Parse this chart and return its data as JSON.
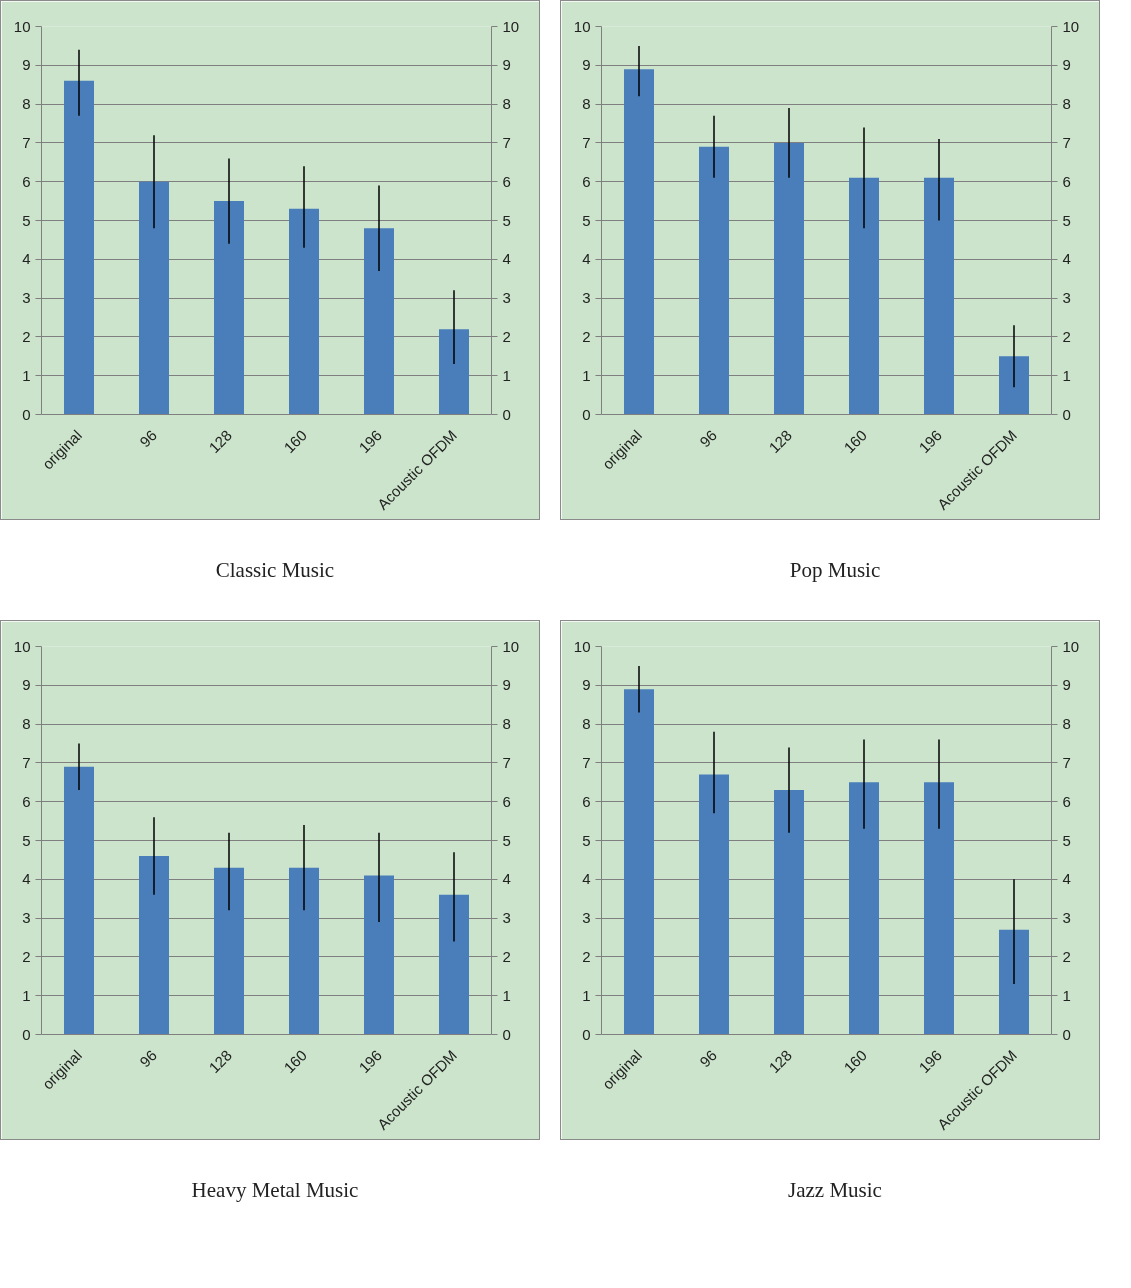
{
  "chart_data": [
    {
      "type": "bar",
      "title": "Classic Music",
      "categories": [
        "original",
        "96",
        "128",
        "160",
        "196",
        "Acoustic OFDM"
      ],
      "color": "#4a7ebb",
      "values": [
        8.6,
        6.0,
        5.5,
        5.3,
        4.8,
        2.2
      ],
      "errors": [
        [
          7.7,
          9.4
        ],
        [
          4.8,
          7.2
        ],
        [
          4.4,
          6.6
        ],
        [
          4.3,
          6.4
        ],
        [
          3.7,
          5.9
        ],
        [
          1.3,
          3.2
        ]
      ],
      "ylim": [
        0,
        10
      ],
      "yticks": [
        0,
        1,
        2,
        3,
        4,
        5,
        6,
        7,
        8,
        9,
        10
      ],
      "y2lim": [
        0,
        10
      ],
      "y2ticks": [
        0,
        1,
        2,
        3,
        4,
        5,
        6,
        7,
        8,
        9,
        10
      ],
      "grid": "y"
    },
    {
      "type": "bar",
      "title": "Pop Music",
      "categories": [
        "original",
        "96",
        "128",
        "160",
        "196",
        "Acoustic OFDM"
      ],
      "color": "#4a7ebb",
      "values": [
        8.9,
        6.9,
        7.0,
        6.1,
        6.1,
        1.5
      ],
      "errors": [
        [
          8.2,
          9.5
        ],
        [
          6.1,
          7.7
        ],
        [
          6.1,
          7.9
        ],
        [
          4.8,
          7.4
        ],
        [
          5.0,
          7.1
        ],
        [
          0.7,
          2.3
        ]
      ],
      "ylim": [
        0,
        10
      ],
      "yticks": [
        0,
        1,
        2,
        3,
        4,
        5,
        6,
        7,
        8,
        9,
        10
      ],
      "y2lim": [
        0,
        10
      ],
      "y2ticks": [
        0,
        1,
        2,
        3,
        4,
        5,
        6,
        7,
        8,
        9,
        10
      ],
      "grid": "y"
    },
    {
      "type": "bar",
      "title": "Heavy Metal Music",
      "categories": [
        "original",
        "96",
        "128",
        "160",
        "196",
        "Acoustic OFDM"
      ],
      "color": "#4a7ebb",
      "values": [
        6.9,
        4.6,
        4.3,
        4.3,
        4.1,
        3.6
      ],
      "errors": [
        [
          6.3,
          7.5
        ],
        [
          3.6,
          5.6
        ],
        [
          3.2,
          5.2
        ],
        [
          3.2,
          5.4
        ],
        [
          2.9,
          5.2
        ],
        [
          2.4,
          4.7
        ]
      ],
      "ylim": [
        0,
        10
      ],
      "yticks": [
        0,
        1,
        2,
        3,
        4,
        5,
        6,
        7,
        8,
        9,
        10
      ],
      "y2lim": [
        0,
        10
      ],
      "y2ticks": [
        0,
        1,
        2,
        3,
        4,
        5,
        6,
        7,
        8,
        9,
        10
      ],
      "grid": "y"
    },
    {
      "type": "bar",
      "title": "Jazz Music",
      "categories": [
        "original",
        "96",
        "128",
        "160",
        "196",
        "Acoustic OFDM"
      ],
      "color": "#4a7ebb",
      "values": [
        8.9,
        6.7,
        6.3,
        6.5,
        6.5,
        2.7
      ],
      "errors": [
        [
          8.3,
          9.5
        ],
        [
          5.7,
          7.8
        ],
        [
          5.2,
          7.4
        ],
        [
          5.3,
          7.6
        ],
        [
          5.3,
          7.6
        ],
        [
          1.3,
          4.0
        ]
      ],
      "ylim": [
        0,
        10
      ],
      "yticks": [
        0,
        1,
        2,
        3,
        4,
        5,
        6,
        7,
        8,
        9,
        10
      ],
      "y2lim": [
        0,
        10
      ],
      "y2ticks": [
        0,
        1,
        2,
        3,
        4,
        5,
        6,
        7,
        8,
        9,
        10
      ],
      "grid": "y"
    }
  ]
}
